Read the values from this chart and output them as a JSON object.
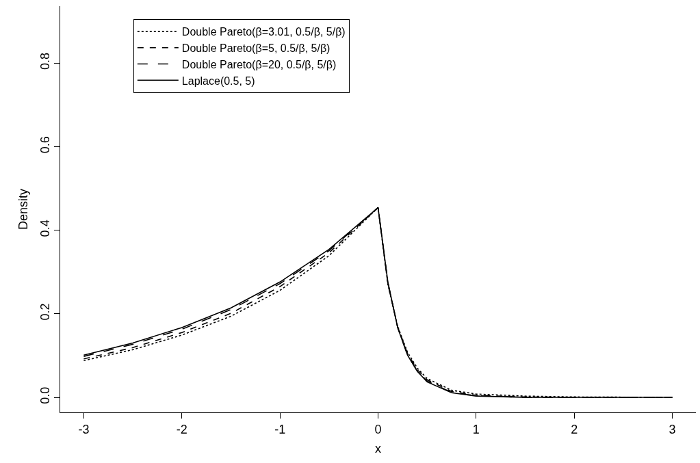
{
  "chart_data": {
    "type": "line",
    "xlabel": "x",
    "ylabel": "Density",
    "x": [
      -3,
      -2.5,
      -2,
      -1.5,
      -1,
      -0.5,
      0,
      0.1,
      0.2,
      0.3,
      0.4,
      0.5,
      0.75,
      1,
      1.5,
      2,
      3
    ],
    "series": [
      {
        "name": "Double Pareto(β=3.01, 0.5/β, 5/β)",
        "color": "#000000",
        "line_style": "dotted",
        "values": [
          0.088,
          0.114,
          0.149,
          0.194,
          0.256,
          0.339,
          0.454,
          0.27,
          0.17,
          0.108,
          0.07,
          0.045,
          0.017,
          0.008,
          0.003,
          0.001,
          0
        ]
      },
      {
        "name": "Double Pareto(β=5, 0.5/β, 5/β)",
        "color": "#000000",
        "line_style": "dashed",
        "values": [
          0.092,
          0.119,
          0.155,
          0.201,
          0.265,
          0.346,
          0.454,
          0.272,
          0.168,
          0.105,
          0.066,
          0.042,
          0.014,
          0.005,
          0.001,
          0,
          0
        ]
      },
      {
        "name": "Double Pareto(β=20, 0.5/β, 5/β)",
        "color": "#000000",
        "line_style": "dashed",
        "values": [
          0.098,
          0.127,
          0.163,
          0.21,
          0.272,
          0.351,
          0.454,
          0.275,
          0.167,
          0.102,
          0.063,
          0.039,
          0.012,
          0.004,
          0,
          0,
          0
        ]
      },
      {
        "name": "Laplace(0.5, 5)",
        "color": "#000000",
        "line_style": "solid",
        "values": [
          0.101,
          0.13,
          0.167,
          0.214,
          0.276,
          0.354,
          0.454,
          0.276,
          0.167,
          0.101,
          0.062,
          0.037,
          0.011,
          0.003,
          0,
          0,
          0
        ]
      }
    ],
    "xlim": [
      -3.24,
      3.24
    ],
    "xticks": [
      -3,
      -2,
      -1,
      0,
      1,
      2,
      3
    ],
    "ylim": [
      -0.036,
      0.936
    ],
    "yticks": [
      {
        "value": 0,
        "label": "0.0"
      },
      {
        "value": 0.2,
        "label": "0.2"
      },
      {
        "value": 0.4,
        "label": "0.4"
      },
      {
        "value": 0.6,
        "label": "0.6"
      },
      {
        "value": 0.8,
        "label": "0.8"
      }
    ],
    "legend": "top",
    "marker": "none"
  }
}
